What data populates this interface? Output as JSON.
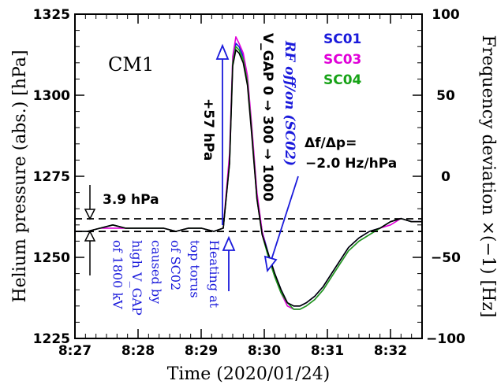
{
  "chart_data": {
    "type": "line",
    "title": "CM1",
    "xlabel": "Time (2020/01/24)",
    "ylabel": "Helium pressure (abs.) [hPa]",
    "y2label": "Frequency deviation ×(−1) [Hz]",
    "xlim": [
      "8:27:00",
      "8:32:30"
    ],
    "ylim": [
      1225,
      1325
    ],
    "y2lim": [
      -100,
      100
    ],
    "x_ticks": [
      "8:27",
      "8:28",
      "8:29",
      "8:30",
      "8:31",
      "8:32"
    ],
    "y_ticks": [
      "1225",
      "1250",
      "1275",
      "1300",
      "1325"
    ],
    "y2_ticks": [
      "−100",
      "−50",
      "0",
      "50",
      "100"
    ],
    "grid": false,
    "legend_position": "top-right",
    "series": [
      {
        "name": "SC01",
        "color": "#1a1adb",
        "x": [
          "8:27:00",
          "8:27:12",
          "8:27:24",
          "8:27:36",
          "8:27:48",
          "8:28:00",
          "8:28:12",
          "8:28:24",
          "8:28:36",
          "8:28:48",
          "8:29:00",
          "8:29:12",
          "8:29:21",
          "8:29:27",
          "8:29:30",
          "8:29:33",
          "8:29:36",
          "8:29:40",
          "8:29:44",
          "8:29:48",
          "8:29:53",
          "8:29:58",
          "8:30:04",
          "8:30:10",
          "8:30:16",
          "8:30:22",
          "8:30:28",
          "8:30:34",
          "8:30:40",
          "8:30:48",
          "8:30:56",
          "8:31:04",
          "8:31:12",
          "8:31:20",
          "8:31:30",
          "8:31:40",
          "8:31:50",
          "8:32:00",
          "8:32:10",
          "8:32:20",
          "8:32:30"
        ],
        "values": [
          1258,
          1258,
          1259,
          1260,
          1259,
          1259,
          1259,
          1259,
          1258,
          1259,
          1259,
          1258,
          1259,
          1280,
          1311,
          1316,
          1315,
          1312,
          1305,
          1290,
          1269,
          1258,
          1251,
          1245,
          1240,
          1236,
          1235,
          1235,
          1236,
          1238,
          1241,
          1245,
          1249,
          1253,
          1256,
          1258,
          1259,
          1261,
          1262,
          1261,
          1261
        ]
      },
      {
        "name": "SC03",
        "color": "#e000d8",
        "x": [
          "8:27:00",
          "8:27:12",
          "8:27:24",
          "8:27:36",
          "8:27:48",
          "8:28:00",
          "8:28:12",
          "8:28:24",
          "8:28:36",
          "8:28:48",
          "8:29:00",
          "8:29:12",
          "8:29:21",
          "8:29:27",
          "8:29:30",
          "8:29:33",
          "8:29:36",
          "8:29:40",
          "8:29:44",
          "8:29:48",
          "8:29:53",
          "8:29:58",
          "8:30:04",
          "8:30:10",
          "8:30:16",
          "8:30:22",
          "8:30:28",
          "8:30:34",
          "8:30:40",
          "8:30:48",
          "8:30:56",
          "8:31:04",
          "8:31:12",
          "8:31:20",
          "8:31:30",
          "8:31:40",
          "8:31:50",
          "8:32:00",
          "8:32:10",
          "8:32:20",
          "8:32:30"
        ],
        "values": [
          1258,
          1258,
          1259,
          1259,
          1259,
          1259,
          1259,
          1259,
          1258,
          1259,
          1259,
          1258,
          1259,
          1282,
          1312,
          1318,
          1316,
          1313,
          1306,
          1291,
          1270,
          1258,
          1250,
          1244,
          1239,
          1235,
          1234,
          1234,
          1235,
          1237,
          1240,
          1244,
          1248,
          1252,
          1255,
          1257,
          1259,
          1260,
          1262,
          1261,
          1261
        ]
      },
      {
        "name": "SC04",
        "color": "#17a317",
        "x": [
          "8:27:00",
          "8:27:12",
          "8:27:24",
          "8:27:36",
          "8:27:48",
          "8:28:00",
          "8:28:12",
          "8:28:24",
          "8:28:36",
          "8:28:48",
          "8:29:00",
          "8:29:12",
          "8:29:21",
          "8:29:27",
          "8:29:30",
          "8:29:33",
          "8:29:36",
          "8:29:40",
          "8:29:44",
          "8:29:48",
          "8:29:53",
          "8:29:58",
          "8:30:04",
          "8:30:10",
          "8:30:16",
          "8:30:22",
          "8:30:28",
          "8:30:34",
          "8:30:40",
          "8:30:48",
          "8:30:56",
          "8:31:04",
          "8:31:12",
          "8:31:20",
          "8:31:30",
          "8:31:40",
          "8:31:50",
          "8:32:00",
          "8:32:10",
          "8:32:20",
          "8:32:30"
        ],
        "values": [
          1258,
          1258,
          1259,
          1260,
          1259,
          1259,
          1259,
          1259,
          1258,
          1259,
          1259,
          1258,
          1259,
          1279,
          1310,
          1315,
          1314,
          1311,
          1304,
          1289,
          1268,
          1257,
          1250,
          1244,
          1239,
          1236,
          1234,
          1234,
          1235,
          1237,
          1240,
          1244,
          1248,
          1252,
          1255,
          1257,
          1259,
          1261,
          1262,
          1261,
          1261
        ]
      },
      {
        "name": "",
        "color": "#000000",
        "x": [
          "8:27:00",
          "8:27:12",
          "8:27:24",
          "8:27:36",
          "8:27:48",
          "8:28:00",
          "8:28:12",
          "8:28:24",
          "8:28:36",
          "8:28:48",
          "8:29:00",
          "8:29:12",
          "8:29:21",
          "8:29:27",
          "8:29:30",
          "8:29:33",
          "8:29:36",
          "8:29:40",
          "8:29:44",
          "8:29:48",
          "8:29:53",
          "8:29:58",
          "8:30:04",
          "8:30:10",
          "8:30:16",
          "8:30:22",
          "8:30:28",
          "8:30:34",
          "8:30:40",
          "8:30:48",
          "8:30:56",
          "8:31:04",
          "8:31:12",
          "8:31:20",
          "8:31:30",
          "8:31:40",
          "8:31:50",
          "8:32:00",
          "8:32:10",
          "8:32:20",
          "8:32:30"
        ],
        "values": [
          1258,
          1258,
          1259,
          1260,
          1259,
          1259,
          1259,
          1259,
          1258,
          1259,
          1259,
          1258,
          1259,
          1279,
          1309,
          1314,
          1313,
          1310,
          1303,
          1288,
          1268,
          1257,
          1251,
          1245,
          1240,
          1236,
          1235,
          1235,
          1236,
          1238,
          1241,
          1245,
          1249,
          1253,
          1256,
          1258,
          1259,
          1261,
          1262,
          1261,
          1261
        ]
      }
    ],
    "reference_lines": [
      {
        "y": 1261.9,
        "style": "dashed"
      },
      {
        "y": 1258.0,
        "style": "dashed"
      }
    ],
    "annotations": {
      "gap_label": "3.9 hPa",
      "rise_label": "+57 hPa",
      "heating_lines": [
        "Heating at",
        "top torus",
        "of SC02",
        "caused by",
        "high V_GAP",
        "of 1800 kV"
      ],
      "rf_label": "RF off/on (SC02)",
      "vgap_label": "V_GAP 0 → 300 → 1000",
      "ratio_line1": "Δf/Δp=",
      "ratio_line2": "−2.0 Hz/hPa"
    }
  }
}
